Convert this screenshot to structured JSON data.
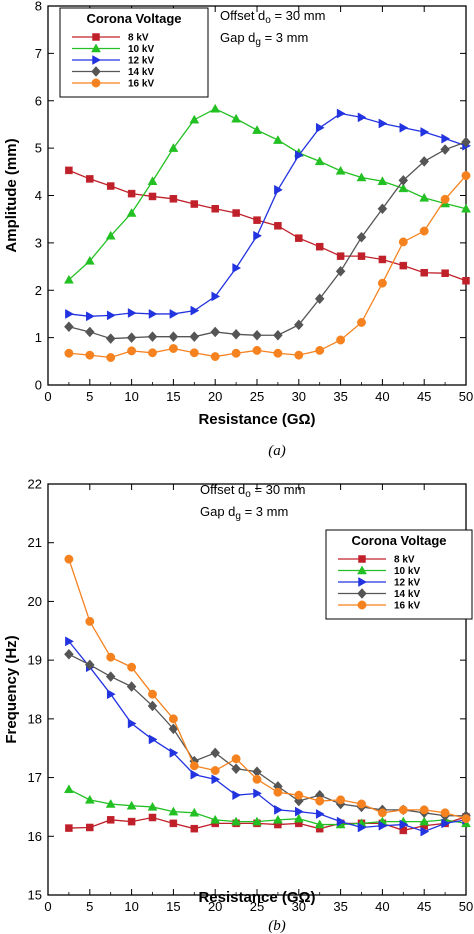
{
  "colors": {
    "8 kV": "#c0202a",
    "10 kV": "#22c022",
    "12 kV": "#2233e0",
    "14 kV": "#555555",
    "16 kV": "#f5821f"
  },
  "chart_data": [
    {
      "type": "line",
      "caption": "(a)",
      "xlabel": "Resistance (GΩ)",
      "ylabel": "Amplitude (mm)",
      "xlim": [
        0,
        50
      ],
      "ylim": [
        0,
        8
      ],
      "xticks": [
        0,
        5,
        10,
        15,
        20,
        25,
        30,
        35,
        40,
        45,
        50
      ],
      "yticks": [
        0,
        1,
        2,
        3,
        4,
        5,
        6,
        7,
        8
      ],
      "legend_title": "Corona Voltage",
      "legend_position": "top-left",
      "annotation_lines": [
        "Offset  dₒ = 30 mm",
        "Gap  dᵍ = 3 mm"
      ],
      "series": [
        {
          "name": "8 kV",
          "marker": "square",
          "x": [
            2.5,
            5,
            7.5,
            10,
            12.5,
            15,
            17.5,
            20,
            22.5,
            25,
            27.5,
            30,
            32.5,
            35,
            37.5,
            40,
            42.5,
            45,
            47.5,
            50
          ],
          "y": [
            4.53,
            4.35,
            4.2,
            4.04,
            3.98,
            3.93,
            3.82,
            3.72,
            3.63,
            3.48,
            3.36,
            3.1,
            2.92,
            2.72,
            2.72,
            2.65,
            2.52,
            2.37,
            2.36,
            2.2
          ]
        },
        {
          "name": "10 kV",
          "marker": "triangle-up",
          "x": [
            2.5,
            5,
            7.5,
            10,
            12.5,
            15,
            17.5,
            20,
            22.5,
            25,
            27.5,
            30,
            32.5,
            35,
            37.5,
            40,
            42.5,
            45,
            47.5,
            50
          ],
          "y": [
            2.22,
            2.62,
            3.15,
            3.63,
            4.3,
            5.0,
            5.6,
            5.83,
            5.62,
            5.38,
            5.17,
            4.9,
            4.72,
            4.52,
            4.38,
            4.3,
            4.15,
            3.95,
            3.83,
            3.72
          ]
        },
        {
          "name": "12 kV",
          "marker": "triangle-right",
          "x": [
            2.5,
            5,
            7.5,
            10,
            12.5,
            15,
            17.5,
            20,
            22.5,
            25,
            27.5,
            30,
            32.5,
            35,
            37.5,
            40,
            42.5,
            45,
            47.5,
            50
          ],
          "y": [
            1.5,
            1.45,
            1.47,
            1.52,
            1.5,
            1.5,
            1.57,
            1.87,
            2.47,
            3.15,
            4.12,
            4.85,
            5.43,
            5.73,
            5.65,
            5.52,
            5.43,
            5.34,
            5.2,
            5.05
          ]
        },
        {
          "name": "14 kV",
          "marker": "diamond",
          "x": [
            2.5,
            5,
            7.5,
            10,
            12.5,
            15,
            17.5,
            20,
            22.5,
            25,
            27.5,
            30,
            32.5,
            35,
            37.5,
            40,
            42.5,
            45,
            47.5,
            50
          ],
          "y": [
            1.23,
            1.12,
            0.98,
            1.0,
            1.02,
            1.02,
            1.02,
            1.12,
            1.07,
            1.05,
            1.05,
            1.27,
            1.82,
            2.4,
            3.12,
            3.72,
            4.32,
            4.72,
            4.97,
            5.13
          ]
        },
        {
          "name": "16 kV",
          "marker": "circle",
          "x": [
            2.5,
            5,
            7.5,
            10,
            12.5,
            15,
            17.5,
            20,
            22.5,
            25,
            27.5,
            30,
            32.5,
            35,
            37.5,
            40,
            42.5,
            45,
            47.5,
            50
          ],
          "y": [
            0.67,
            0.63,
            0.58,
            0.72,
            0.68,
            0.77,
            0.68,
            0.6,
            0.67,
            0.73,
            0.67,
            0.63,
            0.73,
            0.95,
            1.32,
            2.15,
            3.02,
            3.25,
            3.92,
            4.42
          ]
        }
      ]
    },
    {
      "type": "line",
      "caption": "(b)",
      "xlabel": "Resistance (GΩ)",
      "ylabel": "Frequency (Hz)",
      "xlim": [
        0,
        50
      ],
      "ylim": [
        15,
        22
      ],
      "xticks": [
        0,
        5,
        10,
        15,
        20,
        25,
        30,
        35,
        40,
        45,
        50
      ],
      "yticks": [
        15,
        16,
        17,
        18,
        19,
        20,
        21,
        22
      ],
      "legend_title": "Corona Voltage",
      "legend_position": "top-right",
      "annotation_lines": [
        "Offset  dₒ = 30 mm",
        "Gap  dᵍ = 3 mm"
      ],
      "series": [
        {
          "name": "8 kV",
          "marker": "square",
          "x": [
            2.5,
            5,
            7.5,
            10,
            12.5,
            15,
            17.5,
            20,
            22.5,
            25,
            27.5,
            30,
            32.5,
            35,
            37.5,
            40,
            42.5,
            45,
            47.5,
            50
          ],
          "y": [
            16.14,
            16.15,
            16.28,
            16.25,
            16.32,
            16.22,
            16.13,
            16.22,
            16.22,
            16.22,
            16.2,
            16.22,
            16.13,
            16.22,
            16.22,
            16.22,
            16.1,
            16.18,
            16.22,
            16.33
          ]
        },
        {
          "name": "10 kV",
          "marker": "triangle-up",
          "x": [
            2.5,
            5,
            7.5,
            10,
            12.5,
            15,
            17.5,
            20,
            22.5,
            25,
            27.5,
            30,
            32.5,
            35,
            37.5,
            40,
            42.5,
            45,
            47.5,
            50
          ],
          "y": [
            16.8,
            16.62,
            16.55,
            16.52,
            16.5,
            16.42,
            16.4,
            16.28,
            16.25,
            16.25,
            16.28,
            16.3,
            16.2,
            16.2,
            16.22,
            16.25,
            16.25,
            16.25,
            16.28,
            16.22
          ]
        },
        {
          "name": "12 kV",
          "marker": "triangle-right",
          "x": [
            2.5,
            5,
            7.5,
            10,
            12.5,
            15,
            17.5,
            20,
            22.5,
            25,
            27.5,
            30,
            32.5,
            35,
            37.5,
            40,
            42.5,
            45,
            47.5,
            50
          ],
          "y": [
            19.32,
            18.88,
            18.42,
            17.92,
            17.65,
            17.42,
            17.05,
            16.97,
            16.7,
            16.73,
            16.45,
            16.42,
            16.38,
            16.25,
            16.15,
            16.18,
            16.2,
            16.08,
            16.22,
            16.28
          ]
        },
        {
          "name": "14 kV",
          "marker": "diamond",
          "x": [
            2.5,
            5,
            7.5,
            10,
            12.5,
            15,
            17.5,
            20,
            22.5,
            25,
            27.5,
            30,
            32.5,
            35,
            37.5,
            40,
            42.5,
            45,
            47.5,
            50
          ],
          "y": [
            19.1,
            18.92,
            18.72,
            18.55,
            18.22,
            17.83,
            17.28,
            17.42,
            17.15,
            17.1,
            16.85,
            16.6,
            16.7,
            16.55,
            16.5,
            16.45,
            16.45,
            16.4,
            16.35,
            16.35
          ]
        },
        {
          "name": "16 kV",
          "marker": "circle",
          "x": [
            2.5,
            5,
            7.5,
            10,
            12.5,
            15,
            17.5,
            20,
            22.5,
            25,
            27.5,
            30,
            32.5,
            35,
            37.5,
            40,
            42.5,
            45,
            47.5,
            50
          ],
          "y": [
            20.72,
            19.66,
            19.05,
            18.88,
            18.42,
            18.0,
            17.2,
            17.12,
            17.32,
            16.97,
            16.75,
            16.7,
            16.6,
            16.62,
            16.55,
            16.4,
            16.45,
            16.45,
            16.4,
            16.3
          ]
        }
      ]
    }
  ]
}
